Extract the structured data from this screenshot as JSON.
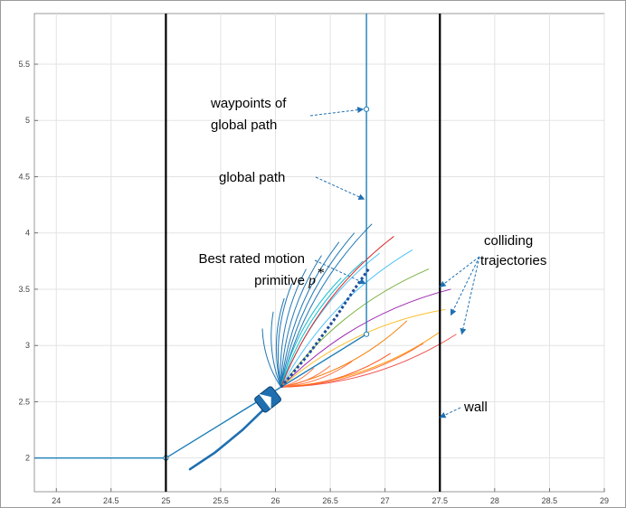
{
  "chart_data": {
    "type": "line",
    "title": "",
    "xlabel": "",
    "ylabel": "",
    "xlim": [
      23.8,
      29
    ],
    "ylim": [
      1.7,
      5.95
    ],
    "grid": true,
    "xticks": [
      "24",
      "24.5",
      "25",
      "25.5",
      "26",
      "26.5",
      "27",
      "27.5",
      "28",
      "28.5",
      "29"
    ],
    "yticks": [
      "2",
      "2.5",
      "3",
      "3.5",
      "4",
      "4.5",
      "5",
      "5.5"
    ],
    "series": [
      {
        "role": "global-path",
        "color": "#1f7fb8",
        "x": [
          23.8,
          25.0,
          26.0,
          26.83,
          26.83,
          26.83
        ],
        "y": [
          2.0,
          2.0,
          2.6,
          3.1,
          5.1,
          5.95
        ]
      },
      {
        "role": "waypoints",
        "color": "#1f7fb8",
        "x": [
          25.0,
          26.83,
          26.83
        ],
        "y": [
          2.0,
          3.1,
          5.1
        ]
      },
      {
        "role": "wall",
        "color": "#000000",
        "x": [
          25.0,
          25.0
        ],
        "y": [
          1.7,
          5.95
        ]
      },
      {
        "role": "wall",
        "color": "#000000",
        "x": [
          27.5,
          27.5
        ],
        "y": [
          1.7,
          5.95
        ]
      },
      {
        "role": "trajectory-history",
        "color": "#1f6fb0",
        "x": [
          25.22,
          25.45,
          25.7,
          25.88
        ],
        "y": [
          1.9,
          2.05,
          2.25,
          2.42
        ]
      },
      {
        "role": "best-primitive",
        "color": "#1f4e9a",
        "x": [
          26.05,
          26.3,
          26.55,
          26.72,
          26.85
        ],
        "y": [
          2.63,
          2.92,
          3.25,
          3.5,
          3.68
        ]
      }
    ],
    "primitives": {
      "origin": [
        26.05,
        2.63
      ],
      "ends": [
        {
          "x": 25.88,
          "y": 3.15,
          "color": "#1f77b4"
        },
        {
          "x": 25.98,
          "y": 3.3,
          "color": "#1f77b4"
        },
        {
          "x": 26.08,
          "y": 3.42,
          "color": "#1f77b4"
        },
        {
          "x": 26.15,
          "y": 3.55,
          "color": "#1f77b4"
        },
        {
          "x": 26.28,
          "y": 3.68,
          "color": "#1f77b4"
        },
        {
          "x": 26.42,
          "y": 3.8,
          "color": "#1f77b4"
        },
        {
          "x": 26.58,
          "y": 3.92,
          "color": "#1f77b4"
        },
        {
          "x": 26.72,
          "y": 4.0,
          "color": "#1f77b4"
        },
        {
          "x": 26.88,
          "y": 4.08,
          "color": "#1f77b4"
        },
        {
          "x": 26.6,
          "y": 3.6,
          "color": "#17becf"
        },
        {
          "x": 26.8,
          "y": 3.75,
          "color": "#17becf"
        },
        {
          "x": 26.95,
          "y": 3.82,
          "color": "#4fc3f7"
        },
        {
          "x": 27.25,
          "y": 3.85,
          "color": "#4fc3f7"
        },
        {
          "x": 27.08,
          "y": 3.97,
          "color": "#d62728"
        },
        {
          "x": 27.4,
          "y": 3.68,
          "color": "#7cb342"
        },
        {
          "x": 27.6,
          "y": 3.5,
          "color": "#9c27b0"
        },
        {
          "x": 27.55,
          "y": 3.32,
          "color": "#fbc02d"
        },
        {
          "x": 27.2,
          "y": 3.22,
          "color": "#f57c00"
        },
        {
          "x": 27.5,
          "y": 3.12,
          "color": "#ff9800"
        },
        {
          "x": 27.65,
          "y": 3.1,
          "color": "#ef5350"
        },
        {
          "x": 27.35,
          "y": 3.02,
          "color": "#ff7043"
        },
        {
          "x": 27.05,
          "y": 2.93,
          "color": "#ff5722"
        },
        {
          "x": 26.7,
          "y": 2.86,
          "color": "#ff7043"
        },
        {
          "x": 26.5,
          "y": 2.82,
          "color": "#ff7043"
        },
        {
          "x": 26.35,
          "y": 2.8,
          "color": "#ff7043"
        }
      ]
    },
    "robot": {
      "x": 25.93,
      "y": 2.52,
      "color": "#1f6fb0"
    },
    "annotations": [
      {
        "id": "waypoints",
        "text": "waypoints of\nglobal path",
        "arrow_to": [
          26.8,
          5.1
        ]
      },
      {
        "id": "global-path",
        "text": "global path",
        "arrow_to": [
          26.81,
          4.3
        ]
      },
      {
        "id": "best-primitive",
        "text": "Best rated motion\nprimitive",
        "symbol": "p*",
        "arrow_to": [
          26.82,
          3.55
        ]
      },
      {
        "id": "colliding",
        "text": "colliding\ntrajectories",
        "arrow_to": [
          [
            27.5,
            3.52
          ],
          [
            27.6,
            3.27
          ],
          [
            27.7,
            3.1
          ]
        ]
      },
      {
        "id": "wall",
        "text": "wall",
        "arrow_to": [
          27.5,
          2.36
        ]
      }
    ]
  }
}
